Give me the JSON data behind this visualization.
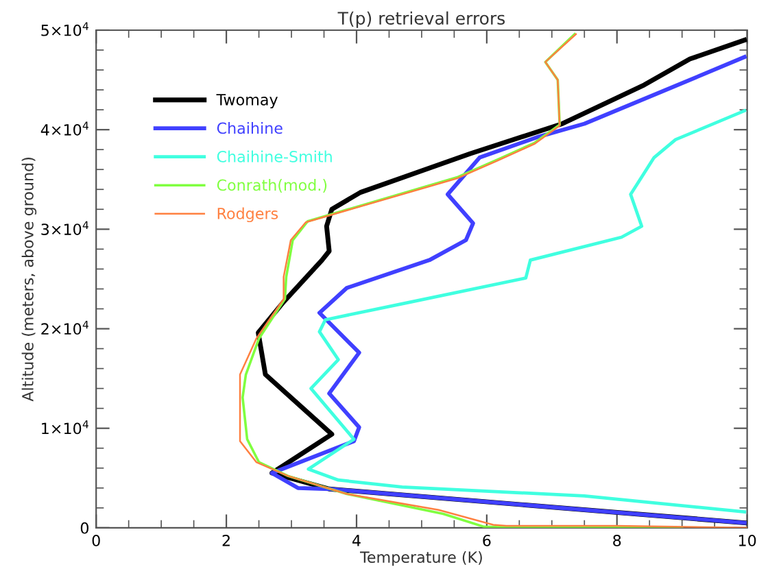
{
  "chart_data": {
    "type": "line",
    "title": "T(p) retrieval errors",
    "xlabel": "Temperature (K)",
    "ylabel": "Altitude (meters, above ground)",
    "xlim": [
      0,
      10
    ],
    "xticks": [
      0,
      2,
      4,
      6,
      8,
      10
    ],
    "ylim": [
      0,
      50000
    ],
    "yticks": [
      0,
      {
        "value": 10000,
        "label": "1×10$^{4}$"
      },
      {
        "value": 20000,
        "label": "2×10$^{4}$"
      },
      {
        "value": 30000,
        "label": "3×10$^{4}$"
      },
      {
        "value": 40000,
        "label": "4×10$^{4}$"
      },
      {
        "value": 50000,
        "label": "5×10$^{4}$"
      }
    ],
    "grid": false,
    "legend": "top left",
    "marker": "none",
    "line_style": "solid",
    "series": [
      {
        "name": "Twomay",
        "color": "#000000",
        "x": [
          9.96,
          3.58,
          2.7,
          3.62,
          3.16,
          2.6,
          2.49,
          2.88,
          3.47,
          3.58,
          3.54,
          3.62,
          4.06,
          5.75,
          7.16,
          8.42,
          9.12,
          9.96
        ],
        "values": [
          500,
          3900,
          5500,
          9400,
          12100,
          15400,
          19600,
          22700,
          26900,
          27800,
          30300,
          32000,
          33700,
          37600,
          40600,
          44500,
          47100,
          49000
        ]
      },
      {
        "name": "Chaihine",
        "color": "#4040ff",
        "x": [
          9.96,
          3.58,
          3.1,
          2.7,
          3.96,
          4.04,
          3.58,
          4.04,
          3.43,
          3.85,
          5.12,
          5.68,
          5.79,
          5.4,
          5.89,
          6.8,
          7.5,
          8.9,
          9.96
        ],
        "values": [
          500,
          3900,
          4000,
          5500,
          8700,
          10100,
          13500,
          17600,
          21600,
          24100,
          26900,
          28900,
          30600,
          33500,
          37200,
          39300,
          40600,
          44400,
          47300
        ]
      },
      {
        "name": "Chaihine-Smith",
        "color": "#40ffe0",
        "x": [
          9.96,
          7.5,
          4.7,
          3.72,
          3.26,
          3.96,
          3.3,
          3.72,
          3.43,
          3.52,
          4.84,
          6.6,
          6.67,
          8.07,
          8.38,
          8.21,
          8.57,
          8.9,
          9.96
        ],
        "values": [
          1600,
          3200,
          4100,
          4800,
          5900,
          8900,
          14000,
          16900,
          19700,
          20900,
          22700,
          25100,
          26900,
          29200,
          30300,
          33500,
          37200,
          39000,
          41900
        ]
      },
      {
        "name": "Conrath(mod.)",
        "color": "#80ff40",
        "x": [
          9,
          6.8,
          5.96,
          5.33,
          3.85,
          2.95,
          2.5,
          2.32,
          2.25,
          2.3,
          2.5,
          2.9,
          2.92,
          3.02,
          3.25,
          5.54,
          6.17,
          6.74,
          7.12,
          7.09,
          6.9,
          7.35
        ],
        "values": [
          0,
          0,
          100,
          1400,
          3400,
          5200,
          6600,
          8900,
          13100,
          15400,
          19000,
          23000,
          25200,
          28900,
          30800,
          35200,
          37000,
          38700,
          40500,
          45000,
          46800,
          49600
        ]
      },
      {
        "name": "Rodgers",
        "color": "#ff8040",
        "x": [
          10,
          8,
          6.3,
          6.1,
          5.26,
          3.85,
          2.95,
          2.46,
          2.21,
          2.21,
          2.21,
          2.46,
          2.88,
          2.88,
          2.99,
          3.22,
          5.54,
          6.17,
          6.74,
          7.12,
          7.09,
          6.9,
          7.37
        ],
        "values": [
          0,
          200,
          200,
          300,
          1800,
          3400,
          5200,
          6600,
          8700,
          13100,
          15400,
          19000,
          23000,
          25200,
          28900,
          30700,
          35100,
          36900,
          38600,
          40400,
          45000,
          46800,
          49600
        ]
      }
    ]
  }
}
